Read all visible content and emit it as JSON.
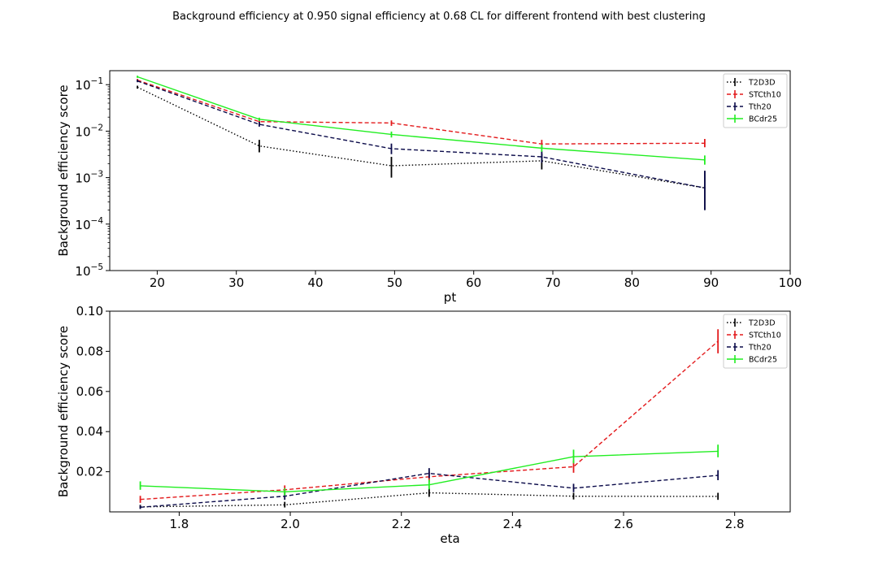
{
  "figure": {
    "suptitle": "Background efficiency at 0.950 signal efficiency at 0.68 CL for different frontend with best clustering"
  },
  "colors": {
    "T2D3D": "#000000",
    "STCth10": "#e31a1c",
    "Tth20": "#0b0b4a",
    "BCdr25": "#22ee22"
  },
  "chart_data": [
    {
      "type": "line",
      "title": "",
      "xlabel": "pt",
      "ylabel": "Background efficiency score",
      "yscale": "log",
      "xlim": [
        14,
        100
      ],
      "ylim": [
        1e-05,
        0.2
      ],
      "xticks": [
        20,
        30,
        40,
        50,
        60,
        70,
        80,
        90,
        100
      ],
      "xtick_labels": [
        "20",
        "30",
        "40",
        "50",
        "60",
        "70",
        "80",
        "90",
        "100"
      ],
      "yticks": [
        1e-05,
        0.0001,
        0.001,
        0.01,
        0.1
      ],
      "ytick_labels": [
        {
          "base": "10",
          "exp": "−5"
        },
        {
          "base": "10",
          "exp": "−4"
        },
        {
          "base": "10",
          "exp": "−3"
        },
        {
          "base": "10",
          "exp": "−2"
        },
        {
          "base": "10",
          "exp": "−1"
        }
      ],
      "legend": {
        "position": "upper right",
        "entries": [
          "T2D3D",
          "STCth10",
          "Tth20",
          "BCdr25"
        ]
      },
      "grid": false,
      "series": [
        {
          "name": "T2D3D",
          "style": "dotted",
          "color": "#000000",
          "x": [
            17.5,
            32.9,
            49.6,
            68.6,
            89.2
          ],
          "y": [
            0.088,
            0.0048,
            0.0018,
            0.0023,
            0.0006
          ],
          "err": [
            [
              0.082,
              0.095
            ],
            [
              0.0035,
              0.0065
            ],
            [
              0.001,
              0.0028
            ],
            [
              0.0015,
              0.0033
            ],
            [
              0.0002,
              0.0014
            ]
          ]
        },
        {
          "name": "STCth10",
          "style": "dashed",
          "color": "#e31a1c",
          "x": [
            17.5,
            32.9,
            49.6,
            68.6,
            89.2
          ],
          "y": [
            0.125,
            0.016,
            0.015,
            0.0053,
            0.0055
          ],
          "err": [
            [
              0.118,
              0.133
            ],
            [
              0.014,
              0.018
            ],
            [
              0.013,
              0.017
            ],
            [
              0.0043,
              0.0065
            ],
            [
              0.0045,
              0.0068
            ]
          ]
        },
        {
          "name": "Tth20",
          "style": "dashed",
          "color": "#0b0b4a",
          "x": [
            17.5,
            32.9,
            49.6,
            68.6,
            89.2
          ],
          "y": [
            0.12,
            0.014,
            0.0042,
            0.0028,
            0.0006
          ],
          "err": [
            [
              0.113,
              0.128
            ],
            [
              0.0125,
              0.0158
            ],
            [
              0.0032,
              0.0054
            ],
            [
              0.0021,
              0.0037
            ],
            [
              0.0002,
              0.0014
            ]
          ]
        },
        {
          "name": "BCdr25",
          "style": "solid",
          "color": "#22ee22",
          "x": [
            17.5,
            32.9,
            49.6,
            68.6,
            89.2
          ],
          "y": [
            0.148,
            0.018,
            0.0085,
            0.0043,
            0.0024
          ],
          "err": [
            [
              0.14,
              0.156
            ],
            [
              0.0165,
              0.0195
            ],
            [
              0.0073,
              0.0098
            ],
            [
              0.0036,
              0.0051
            ],
            [
              0.0019,
              0.003
            ]
          ]
        }
      ]
    },
    {
      "type": "line",
      "title": "",
      "xlabel": "eta",
      "ylabel": "Background efficiency score",
      "yscale": "linear",
      "xlim": [
        1.675,
        2.9
      ],
      "ylim": [
        0.0,
        0.1
      ],
      "xticks": [
        1.8,
        2.0,
        2.2,
        2.4,
        2.6,
        2.8
      ],
      "xtick_labels": [
        "1.8",
        "2.0",
        "2.2",
        "2.4",
        "2.6",
        "2.8"
      ],
      "yticks": [
        0.02,
        0.04,
        0.06,
        0.08,
        0.1
      ],
      "ytick_labels": [
        "0.02",
        "0.04",
        "0.06",
        "0.08",
        "0.10"
      ],
      "legend": {
        "position": "upper right",
        "entries": [
          "T2D3D",
          "STCth10",
          "Tth20",
          "BCdr25"
        ]
      },
      "grid": false,
      "series": [
        {
          "name": "T2D3D",
          "style": "dotted",
          "color": "#000000",
          "x": [
            1.73,
            1.99,
            2.25,
            2.51,
            2.77
          ],
          "y": [
            0.0025,
            0.0035,
            0.0095,
            0.0078,
            0.0077
          ],
          "err": [
            [
              0.0015,
              0.0035
            ],
            [
              0.0022,
              0.005
            ],
            [
              0.0075,
              0.0118
            ],
            [
              0.0062,
              0.0095
            ],
            [
              0.006,
              0.0095
            ]
          ]
        },
        {
          "name": "STCth10",
          "style": "dashed",
          "color": "#e31a1c",
          "x": [
            1.73,
            1.99,
            2.25,
            2.51,
            2.77
          ],
          "y": [
            0.0062,
            0.011,
            0.0175,
            0.0225,
            0.085
          ],
          "err": [
            [
              0.0045,
              0.008
            ],
            [
              0.0088,
              0.0132
            ],
            [
              0.015,
              0.02
            ],
            [
              0.0195,
              0.0255
            ],
            [
              0.079,
              0.091
            ]
          ]
        },
        {
          "name": "Tth20",
          "style": "dashed",
          "color": "#0b0b4a",
          "x": [
            1.73,
            1.99,
            2.25,
            2.51,
            2.77
          ],
          "y": [
            0.0023,
            0.0078,
            0.0192,
            0.0118,
            0.0182
          ],
          "err": [
            [
              0.0015,
              0.0032
            ],
            [
              0.006,
              0.0098
            ],
            [
              0.0168,
              0.0218
            ],
            [
              0.0098,
              0.014
            ],
            [
              0.0158,
              0.0208
            ]
          ]
        },
        {
          "name": "BCdr25",
          "style": "solid",
          "color": "#22ee22",
          "x": [
            1.73,
            1.99,
            2.25,
            2.51,
            2.77
          ],
          "y": [
            0.013,
            0.01,
            0.0135,
            0.0275,
            0.0302
          ],
          "err": [
            [
              0.011,
              0.0152
            ],
            [
              0.0082,
              0.0118
            ],
            [
              0.0112,
              0.016
            ],
            [
              0.0242,
              0.031
            ],
            [
              0.0272,
              0.0335
            ]
          ]
        }
      ]
    }
  ]
}
